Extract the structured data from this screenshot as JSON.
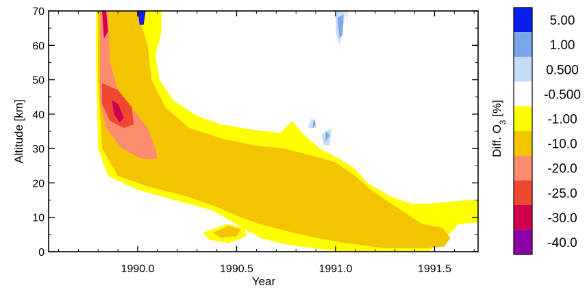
{
  "chart_data": {
    "type": "heatmap",
    "xlabel": "Year",
    "ylabel": "Altitude [km]",
    "xlim": [
      1989.55,
      1991.72
    ],
    "ylim": [
      0,
      70
    ],
    "xticks": [
      1990.0,
      1990.5,
      1991.0,
      1991.5
    ],
    "xtick_labels": [
      "1990.0",
      "1990.5",
      "1991.0",
      "1991.5"
    ],
    "yticks": [
      0,
      10,
      20,
      30,
      40,
      50,
      60,
      70
    ],
    "ytick_labels": [
      "0",
      "10",
      "20",
      "30",
      "40",
      "50",
      "60",
      "70"
    ],
    "colorbar": {
      "title_main": "Diff. O",
      "title_sub": "3",
      "title_unit": " [%]",
      "levels": [
        "5.00",
        "1.00",
        "0.500",
        "-0.500",
        "-1.00",
        "-10.0",
        "-20.0",
        "-25.0",
        "-30.0",
        "-40.0"
      ],
      "colors": [
        "#0a1ef0",
        "#7aa6ec",
        "#c4dcf6",
        "#ffffff",
        "#ffff00",
        "#f2c500",
        "#fb8c6e",
        "#f04830",
        "#d0004e",
        "#8c00a8"
      ]
    },
    "regions": [
      {
        "level": "-1.00",
        "polygons": [
          [
            [
              1989.79,
              70
            ],
            [
              1990.12,
              70
            ],
            [
              1990.12,
              64
            ],
            [
              1990.09,
              57
            ],
            [
              1990.11,
              50
            ],
            [
              1990.18,
              44
            ],
            [
              1990.3,
              39.5
            ],
            [
              1990.42,
              37
            ],
            [
              1990.58,
              35.5
            ],
            [
              1990.72,
              34.5
            ],
            [
              1990.78,
              38
            ],
            [
              1990.84,
              34
            ],
            [
              1990.92,
              30
            ],
            [
              1991.02,
              27
            ],
            [
              1991.1,
              24
            ],
            [
              1991.16,
              20
            ],
            [
              1991.28,
              16
            ],
            [
              1991.38,
              14
            ],
            [
              1991.48,
              14
            ],
            [
              1991.58,
              14.5
            ],
            [
              1991.65,
              15
            ],
            [
              1991.72,
              15
            ],
            [
              1991.72,
              8.5
            ],
            [
              1991.62,
              8
            ],
            [
              1991.54,
              3
            ],
            [
              1991.47,
              0.2
            ],
            [
              1991.0,
              0.2
            ],
            [
              1990.76,
              2
            ],
            [
              1990.62,
              4
            ],
            [
              1990.5,
              8
            ],
            [
              1990.38,
              12
            ],
            [
              1990.22,
              14.5
            ],
            [
              1990.0,
              18
            ],
            [
              1989.85,
              22
            ],
            [
              1989.8,
              30
            ],
            [
              1989.79,
              55
            ]
          ],
          [
            [
              1990.33,
              5.5
            ],
            [
              1990.45,
              8
            ],
            [
              1990.54,
              7
            ],
            [
              1990.55,
              4.5
            ],
            [
              1990.46,
              2.5
            ],
            [
              1990.36,
              3.5
            ]
          ]
        ]
      },
      {
        "level": "-10.0",
        "polygons": [
          [
            [
              1989.8,
              70
            ],
            [
              1990.0,
              70
            ],
            [
              1990.05,
              60
            ],
            [
              1990.07,
              50
            ],
            [
              1990.14,
              42
            ],
            [
              1990.26,
              36
            ],
            [
              1990.42,
              33
            ],
            [
              1990.58,
              31
            ],
            [
              1990.74,
              30
            ],
            [
              1990.88,
              28
            ],
            [
              1991.0,
              26
            ],
            [
              1991.1,
              22
            ],
            [
              1991.18,
              18
            ],
            [
              1991.28,
              14
            ],
            [
              1991.36,
              11
            ],
            [
              1991.44,
              8
            ],
            [
              1991.54,
              7
            ],
            [
              1991.58,
              4
            ],
            [
              1991.55,
              1.5
            ],
            [
              1991.45,
              1
            ],
            [
              1991.25,
              1
            ],
            [
              1991.05,
              2.5
            ],
            [
              1990.9,
              4
            ],
            [
              1990.75,
              6
            ],
            [
              1990.62,
              8
            ],
            [
              1990.52,
              10
            ],
            [
              1990.4,
              13
            ],
            [
              1990.25,
              16
            ],
            [
              1990.05,
              19
            ],
            [
              1989.9,
              22
            ],
            [
              1989.82,
              30
            ],
            [
              1989.8,
              50
            ]
          ],
          [
            [
              1990.38,
              5.5
            ],
            [
              1990.46,
              7.5
            ],
            [
              1990.52,
              6.5
            ],
            [
              1990.5,
              4.5
            ],
            [
              1990.42,
              4
            ]
          ]
        ]
      },
      {
        "level": "-20.0",
        "polygons": [
          [
            [
              1989.81,
              70
            ],
            [
              1989.85,
              70
            ],
            [
              1989.86,
              55
            ],
            [
              1989.9,
              47
            ],
            [
              1989.98,
              41
            ],
            [
              1990.05,
              36
            ],
            [
              1990.09,
              30
            ],
            [
              1990.1,
              27
            ],
            [
              1990.02,
              27
            ],
            [
              1989.92,
              30
            ],
            [
              1989.84,
              36
            ],
            [
              1989.81,
              44
            ]
          ]
        ]
      },
      {
        "level": "-25.0",
        "polygons": [
          [
            [
              1989.82,
              49
            ],
            [
              1989.9,
              47
            ],
            [
              1989.97,
              42
            ],
            [
              1989.98,
              37
            ],
            [
              1989.93,
              36
            ],
            [
              1989.86,
              38
            ],
            [
              1989.82,
              43
            ]
          ]
        ]
      },
      {
        "level": "-30.0",
        "polygons": [
          [
            [
              1989.82,
              70
            ],
            [
              1989.84,
              70
            ],
            [
              1989.85,
              64
            ],
            [
              1989.83,
              62
            ]
          ],
          [
            [
              1989.87,
              44
            ],
            [
              1989.9,
              43
            ],
            [
              1989.93,
              39
            ],
            [
              1989.91,
              37.5
            ],
            [
              1989.88,
              40
            ]
          ]
        ]
      },
      {
        "level": "0.500",
        "polygons": [
          [
            [
              1991.0,
              70
            ],
            [
              1991.05,
              70
            ],
            [
              1991.04,
              66
            ],
            [
              1991.02,
              60
            ],
            [
              1991.0,
              64
            ]
          ],
          [
            [
              1990.86,
              36
            ],
            [
              1990.88,
              39
            ],
            [
              1990.9,
              36
            ]
          ],
          [
            [
              1990.93,
              34
            ],
            [
              1990.98,
              36
            ],
            [
              1990.97,
              31
            ],
            [
              1990.94,
              31
            ]
          ],
          [
            [
              1991.05,
              70
            ],
            [
              1991.06,
              70
            ],
            [
              1991.06,
              66
            ]
          ]
        ]
      },
      {
        "level": "1.00",
        "polygons": [
          [
            [
              1991.01,
              68
            ],
            [
              1991.04,
              69
            ],
            [
              1991.035,
              63
            ],
            [
              1991.02,
              62
            ]
          ],
          [
            [
              1990.95,
              35
            ],
            [
              1990.97,
              34
            ],
            [
              1990.95,
              32
            ]
          ],
          [
            [
              1990.89,
              39
            ],
            [
              1990.9,
              37
            ],
            [
              1990.885,
              36
            ]
          ]
        ]
      },
      {
        "level": "5.00",
        "polygons": [
          [
            [
              1990.0,
              70
            ],
            [
              1990.04,
              70
            ],
            [
              1990.03,
              66
            ],
            [
              1990.01,
              66
            ]
          ]
        ]
      }
    ]
  }
}
